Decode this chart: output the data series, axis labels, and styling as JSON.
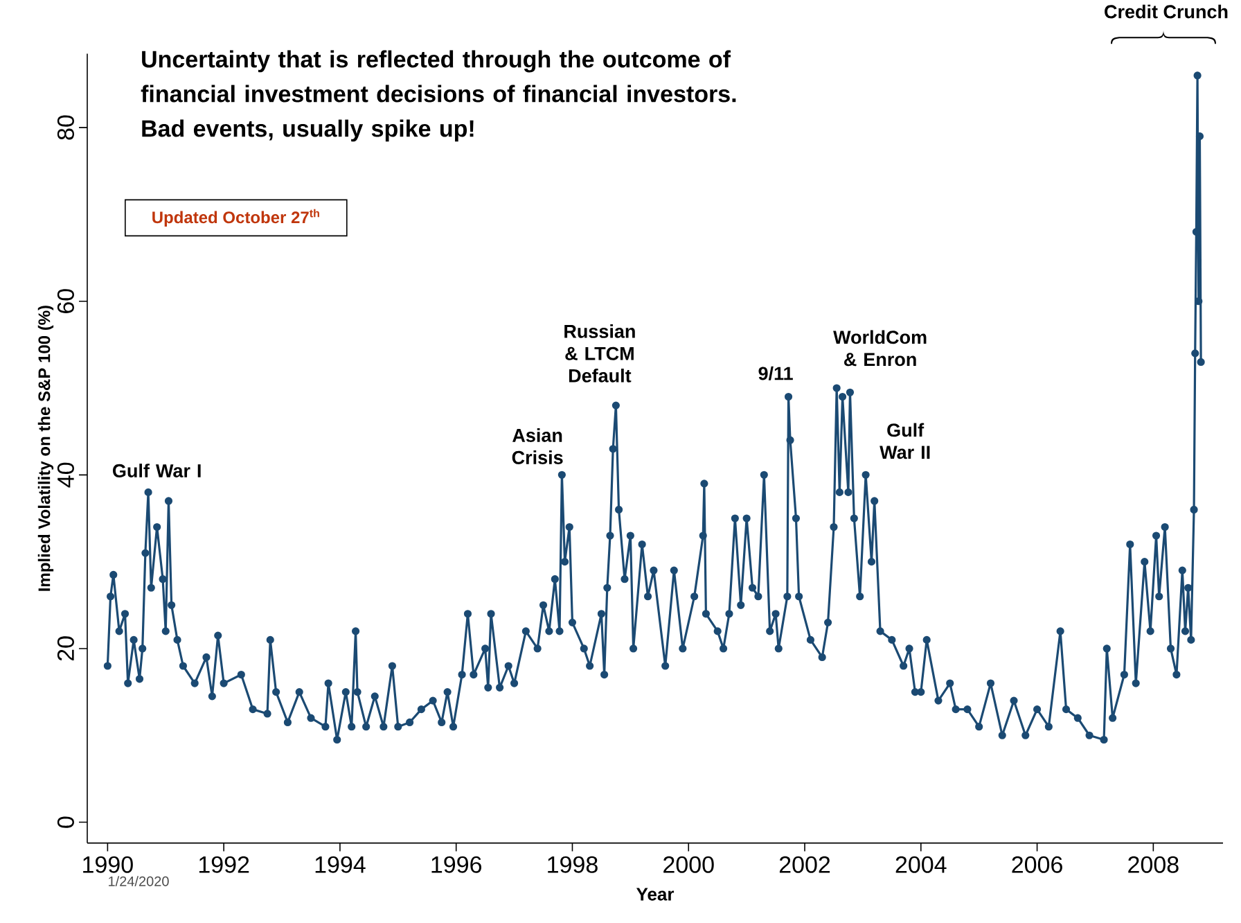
{
  "chart_data": {
    "type": "line",
    "title": "Uncertainty that is reflected through the outcome of financial investment decisions of financial investors. Bad events, usually spike up!",
    "xlabel": "Year",
    "ylabel": "Implied Volatility on the S&P 100 (%)",
    "xlim": [
      1989.65,
      2009.2
    ],
    "ylim": [
      -2.4,
      88.5
    ],
    "xticks": [
      1990,
      1992,
      1994,
      1996,
      1998,
      2000,
      2002,
      2004,
      2006,
      2008
    ],
    "yticks": [
      0,
      20,
      40,
      60,
      80
    ],
    "marker": "circle",
    "line_style": "solid",
    "annotations": [
      "Updated October 27$^{th}$",
      "Credit Crunch",
      "1/24/2020",
      "Gulf War I",
      "Asian Crisis",
      "Russian & LTCM Default",
      "9/11",
      "WorldCom & Enron",
      "Gulf War II"
    ],
    "series": [
      {
        "color": "#1b4a73",
        "x": [
          1990.0,
          1990.05,
          1990.1,
          1990.2,
          1990.3,
          1990.35,
          1990.45,
          1990.55,
          1990.6,
          1990.65,
          1990.7,
          1990.75,
          1990.85,
          1990.95,
          1991.0,
          1991.05,
          1991.1,
          1991.2,
          1991.3,
          1991.5,
          1991.7,
          1991.8,
          1991.9,
          1992.0,
          1992.3,
          1992.5,
          1992.75,
          1992.8,
          1992.9,
          1993.1,
          1993.3,
          1993.5,
          1993.75,
          1993.8,
          1993.95,
          1994.1,
          1994.2,
          1994.27,
          1994.3,
          1994.45,
          1994.6,
          1994.75,
          1994.9,
          1995.0,
          1995.2,
          1995.4,
          1995.6,
          1995.75,
          1995.85,
          1995.95,
          1996.1,
          1996.2,
          1996.3,
          1996.5,
          1996.55,
          1996.6,
          1996.75,
          1996.9,
          1997.0,
          1997.2,
          1997.4,
          1997.5,
          1997.6,
          1997.7,
          1997.78,
          1997.82,
          1997.87,
          1997.95,
          1998.0,
          1998.2,
          1998.3,
          1998.5,
          1998.55,
          1998.6,
          1998.65,
          1998.7,
          1998.75,
          1998.8,
          1998.9,
          1999.0,
          1999.05,
          1999.2,
          1999.3,
          1999.4,
          1999.6,
          1999.75,
          1999.9,
          2000.1,
          2000.25,
          2000.27,
          2000.3,
          2000.5,
          2000.6,
          2000.7,
          2000.8,
          2000.9,
          2001.0,
          2001.1,
          2001.2,
          2001.3,
          2001.4,
          2001.5,
          2001.55,
          2001.7,
          2001.72,
          2001.75,
          2001.85,
          2001.9,
          2002.1,
          2002.3,
          2002.4,
          2002.5,
          2002.55,
          2002.6,
          2002.65,
          2002.75,
          2002.78,
          2002.85,
          2002.95,
          2003.05,
          2003.15,
          2003.2,
          2003.3,
          2003.5,
          2003.7,
          2003.8,
          2003.9,
          2004.0,
          2004.1,
          2004.3,
          2004.5,
          2004.6,
          2004.8,
          2005.0,
          2005.2,
          2005.4,
          2005.6,
          2005.8,
          2006.0,
          2006.2,
          2006.4,
          2006.5,
          2006.7,
          2006.9,
          2007.15,
          2007.2,
          2007.3,
          2007.5,
          2007.6,
          2007.7,
          2007.85,
          2007.95,
          2008.05,
          2008.1,
          2008.2,
          2008.3,
          2008.4,
          2008.5,
          2008.55,
          2008.6,
          2008.65,
          2008.7,
          2008.72,
          2008.74,
          2008.76,
          2008.78,
          2008.8,
          2008.82
        ],
        "values": [
          18,
          26,
          28.5,
          22,
          24,
          16,
          21,
          16.5,
          20,
          31,
          38,
          27,
          34,
          28,
          22,
          37,
          25,
          21,
          18,
          16,
          19,
          14.5,
          21.5,
          16,
          17,
          13,
          12.5,
          21,
          15,
          11.5,
          15,
          12,
          11,
          16,
          9.5,
          15,
          11,
          22,
          15,
          11,
          14.5,
          11,
          18,
          11,
          11.5,
          13,
          14,
          11.5,
          15,
          11,
          17,
          24,
          17,
          20,
          15.5,
          24,
          15.5,
          18,
          16,
          22,
          20,
          25,
          22,
          28,
          22,
          40,
          30,
          34,
          23,
          20,
          18,
          24,
          17,
          27,
          33,
          43,
          48,
          36,
          28,
          33,
          20,
          32,
          26,
          29,
          18,
          29,
          20,
          26,
          33,
          39,
          24,
          22,
          20,
          24,
          35,
          25,
          35,
          27,
          26,
          40,
          22,
          24,
          20,
          26,
          49,
          44,
          35,
          26,
          21,
          19,
          23,
          34,
          50,
          38,
          49,
          38,
          49.5,
          35,
          26,
          40,
          30,
          37,
          22,
          21,
          18,
          20,
          15,
          15,
          21,
          14,
          16,
          13,
          13,
          11,
          16,
          10,
          14,
          10,
          13,
          11,
          22,
          13,
          12,
          10,
          9.5,
          20,
          12,
          17,
          32,
          16,
          30,
          22,
          33,
          26,
          34,
          20,
          17,
          29,
          22,
          27,
          21,
          36,
          54,
          68,
          86,
          60,
          79,
          53
        ]
      }
    ]
  }
}
